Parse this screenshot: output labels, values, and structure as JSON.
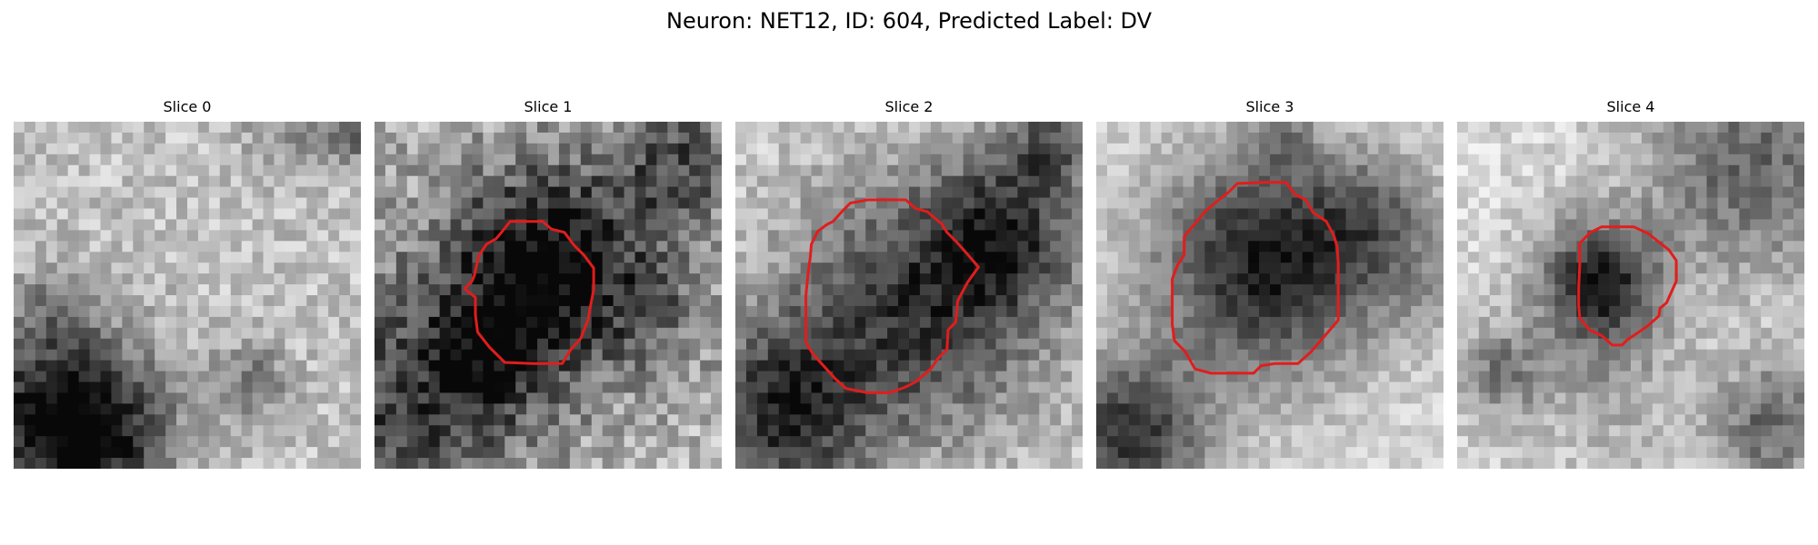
{
  "figure": {
    "suptitle": "Neuron: NET12, ID: 604, Predicted Label: DV"
  },
  "panels": [
    {
      "title": "Slice 0",
      "has_contour": false
    },
    {
      "title": "Slice 1",
      "has_contour": true
    },
    {
      "title": "Slice 2",
      "has_contour": true
    },
    {
      "title": "Slice 3",
      "has_contour": true
    },
    {
      "title": "Slice 4",
      "has_contour": true
    }
  ],
  "colors": {
    "contour": "#e11d1d",
    "colormap": "grayscale"
  }
}
